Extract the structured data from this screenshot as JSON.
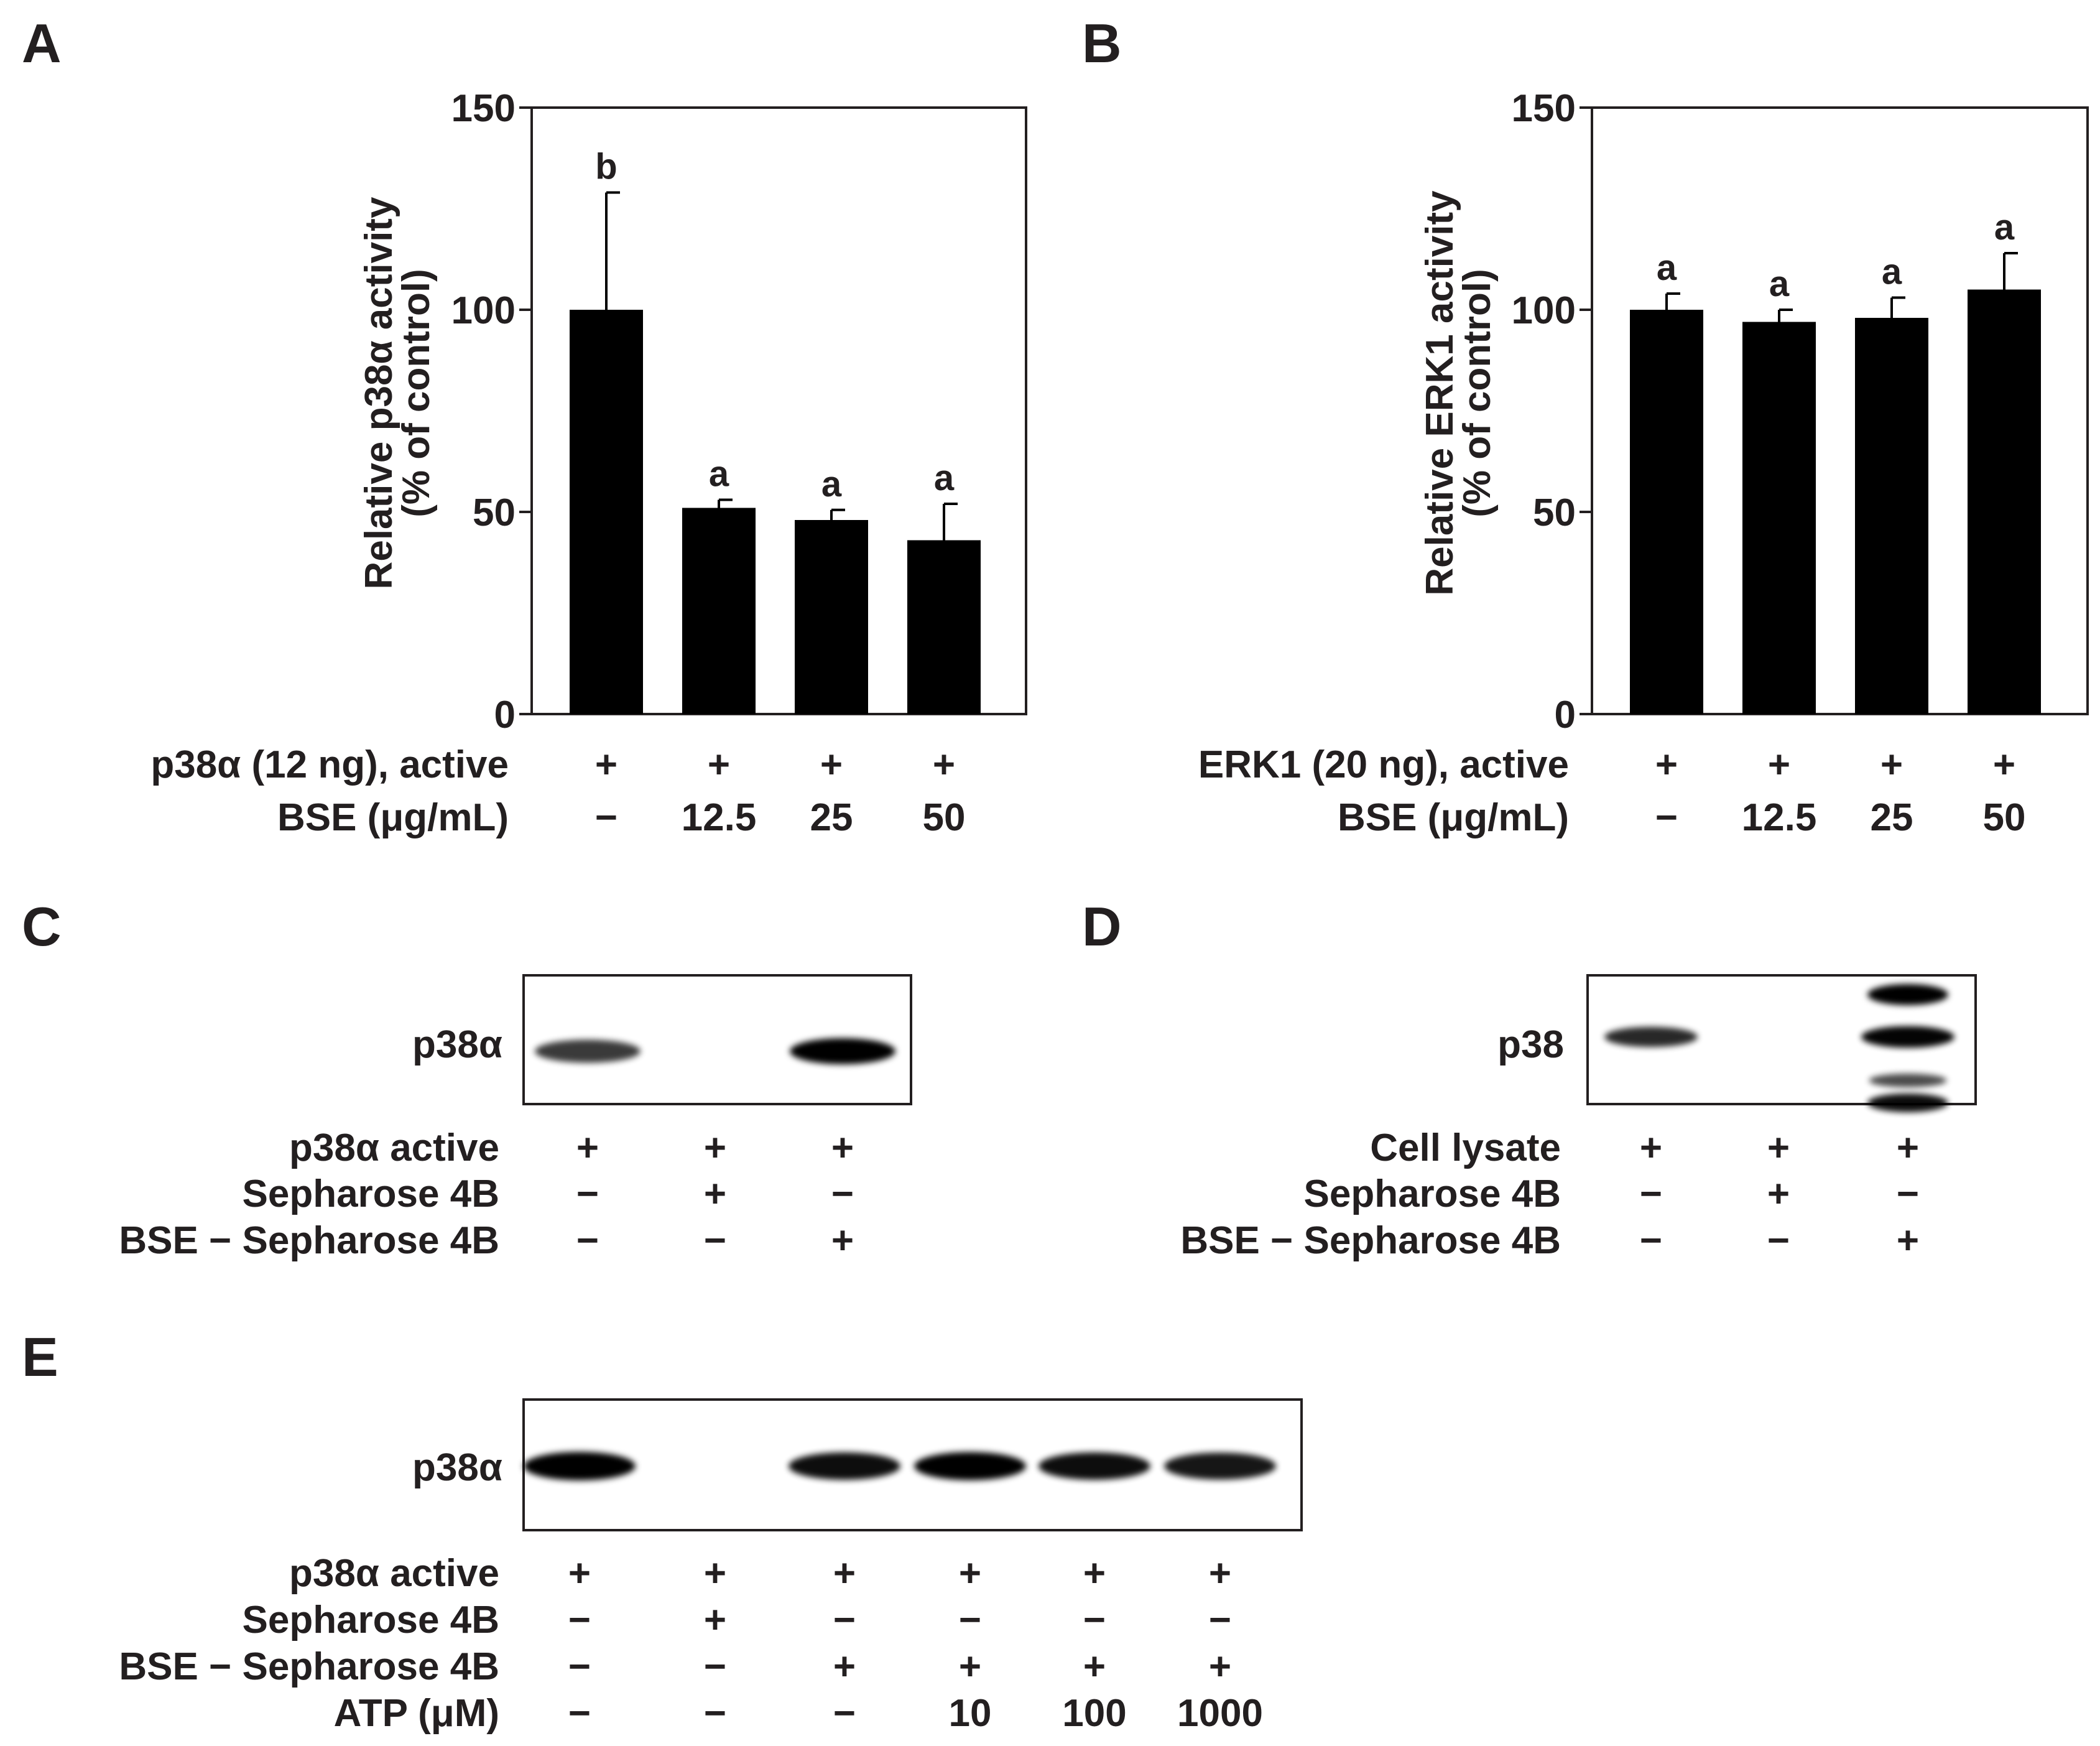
{
  "panels": {
    "A": {
      "letter": "A"
    },
    "B": {
      "letter": "B"
    },
    "C": {
      "letter": "C",
      "band_label": "p38α"
    },
    "D": {
      "letter": "D",
      "band_label": "p38"
    },
    "E": {
      "letter": "E",
      "band_label": "p38α"
    }
  },
  "chart_data": [
    {
      "panel": "A",
      "type": "bar",
      "ylabel_line1": "Relative p38α activity",
      "ylabel_line2": "(% of control)",
      "ylim": [
        0,
        150
      ],
      "yticks": [
        "0",
        "50",
        "100",
        "150"
      ],
      "grid": false,
      "values": [
        100,
        51,
        48,
        43
      ],
      "errors": [
        29,
        2,
        2.5,
        9
      ],
      "significance": [
        "b",
        "a",
        "a",
        "a"
      ],
      "conditions": [
        {
          "label": "p38α (12 ng), active",
          "values": [
            "+",
            "+",
            "+",
            "+"
          ]
        },
        {
          "label": "BSE (μg/mL)",
          "values": [
            "−",
            "12.5",
            "25",
            "50"
          ]
        }
      ],
      "bar_color": "#000000"
    },
    {
      "panel": "B",
      "type": "bar",
      "ylabel_line1": "Relative ERK1 activity",
      "ylabel_line2": "(% of control)",
      "ylim": [
        0,
        150
      ],
      "yticks": [
        "0",
        "50",
        "100",
        "150"
      ],
      "grid": false,
      "values": [
        100,
        97,
        98,
        105
      ],
      "errors": [
        4,
        3,
        5,
        9
      ],
      "significance": [
        "a",
        "a",
        "a",
        "a"
      ],
      "conditions": [
        {
          "label": "ERK1 (20 ng), active",
          "values": [
            "+",
            "+",
            "+",
            "+"
          ]
        },
        {
          "label": "BSE (μg/mL)",
          "values": [
            "−",
            "12.5",
            "25",
            "50"
          ]
        }
      ],
      "bar_color": "#000000"
    }
  ],
  "blots": [
    {
      "panel": "C",
      "lane_count": 3,
      "band_intensity": [
        0.6,
        0.0,
        1.0
      ],
      "conditions": [
        {
          "label": "p38α active",
          "values": [
            "+",
            "+",
            "+"
          ]
        },
        {
          "label": "Sepharose 4B",
          "values": [
            "−",
            "+",
            "−"
          ]
        },
        {
          "label": "BSE − Sepharose 4B",
          "values": [
            "−",
            "−",
            "+"
          ]
        }
      ]
    },
    {
      "panel": "D",
      "lane_count": 3,
      "band_intensity": [
        0.7,
        0.0,
        0.9
      ],
      "conditions": [
        {
          "label": "Cell lysate",
          "values": [
            "+",
            "+",
            "+"
          ]
        },
        {
          "label": "Sepharose 4B",
          "values": [
            "−",
            "+",
            "−"
          ]
        },
        {
          "label": "BSE − Sepharose 4B",
          "values": [
            "−",
            "−",
            "+"
          ]
        }
      ]
    },
    {
      "panel": "E",
      "lane_count": 6,
      "band_intensity": [
        1.0,
        0.0,
        0.85,
        0.95,
        0.85,
        0.8
      ],
      "conditions": [
        {
          "label": "p38α active",
          "values": [
            "+",
            "+",
            "+",
            "+",
            "+",
            "+"
          ]
        },
        {
          "label": "Sepharose 4B",
          "values": [
            "−",
            "+",
            "−",
            "−",
            "−",
            "−"
          ]
        },
        {
          "label": "BSE − Sepharose 4B",
          "values": [
            "−",
            "−",
            "+",
            "+",
            "+",
            "+"
          ]
        },
        {
          "label": "ATP (μM)",
          "values": [
            "−",
            "−",
            "−",
            "10",
            "100",
            "1000"
          ]
        }
      ]
    }
  ]
}
